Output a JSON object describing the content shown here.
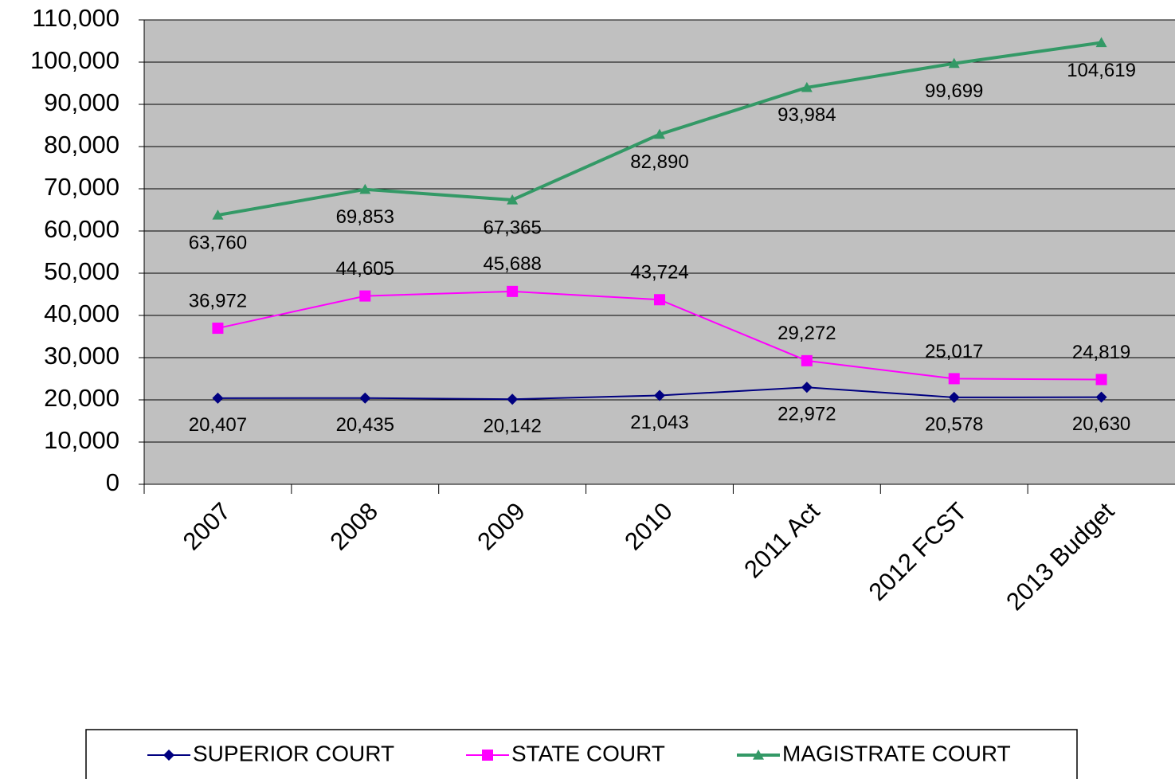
{
  "chart_data": {
    "type": "line",
    "categories": [
      "2007",
      "2008",
      "2009",
      "2010",
      "2011 Act",
      "2012 FCST",
      "2013 Budget"
    ],
    "series": [
      {
        "name": "SUPERIOR COURT",
        "color": "#000080",
        "marker": "diamond",
        "values": [
          20407,
          20435,
          20142,
          21043,
          22972,
          20578,
          20630
        ],
        "value_labels": [
          "20,407",
          "20,435",
          "20,142",
          "21,043",
          "22,972",
          "20,578",
          "20,630"
        ]
      },
      {
        "name": "STATE COURT",
        "color": "#ff00ff",
        "marker": "square",
        "values": [
          36972,
          44605,
          45688,
          43724,
          29272,
          25017,
          24819
        ],
        "value_labels": [
          "36,972",
          "44,605",
          "45,688",
          "43,724",
          "29,272",
          "25,017",
          "24,819"
        ]
      },
      {
        "name": "MAGISTRATE COURT",
        "color": "#339966",
        "marker": "triangle",
        "values": [
          63760,
          69853,
          67365,
          82890,
          93984,
          99699,
          104619
        ],
        "value_labels": [
          "63,760",
          "69,853",
          "67,365",
          "82,890",
          "93,984",
          "99,699",
          "104,619"
        ]
      }
    ],
    "ylim": [
      0,
      110000
    ],
    "yticks": [
      0,
      {
        "value": 10000,
        "label": "10,000"
      },
      {
        "value": 20000,
        "label": "20,000"
      },
      {
        "value": 30000,
        "label": "30,000"
      },
      {
        "value": 40000,
        "label": "40,000"
      },
      {
        "value": 50000,
        "label": "50,000"
      },
      {
        "value": 60000,
        "label": "60,000"
      },
      {
        "value": 70000,
        "label": "70,000"
      },
      {
        "value": 80000,
        "label": "80,000"
      },
      {
        "value": 90000,
        "label": "90,000"
      },
      {
        "value": 100000,
        "label": "100,000"
      },
      {
        "value": 110000,
        "label": "110,000"
      }
    ],
    "grid": true,
    "legend": "bottom",
    "plot_background": "#c0c0c0"
  }
}
